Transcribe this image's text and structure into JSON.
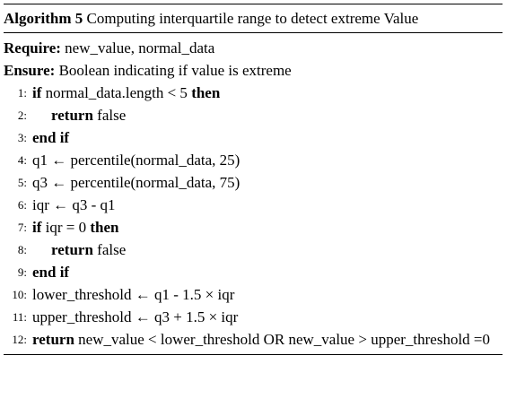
{
  "title": {
    "label": "Algorithm 5",
    "text": "Computing interquartile range to detect extreme Value"
  },
  "require": {
    "keyword": "Require:",
    "text": "new_value, normal_data"
  },
  "ensure": {
    "keyword": "Ensure:",
    "text": "Boolean indicating if value is extreme"
  },
  "lines": [
    {
      "num": "1:",
      "kw1": "if",
      "text": "normal_data.length < 5",
      "kw2": "then"
    },
    {
      "num": "2:",
      "kw1": "return",
      "text": "false"
    },
    {
      "num": "3:",
      "kw1": "end if"
    },
    {
      "num": "4:",
      "text": "q1 ← percentile(normal_data, 25)"
    },
    {
      "num": "5:",
      "text": "q3 ← percentile(normal_data, 75)"
    },
    {
      "num": "6:",
      "text": "iqr ← q3 - q1"
    },
    {
      "num": "7:",
      "kw1": "if",
      "text": "iqr = 0",
      "kw2": "then"
    },
    {
      "num": "8:",
      "kw1": "return",
      "text": "false"
    },
    {
      "num": "9:",
      "kw1": "end if"
    },
    {
      "num": "10:",
      "text": "lower_threshold ← q1 - 1.5 × iqr"
    },
    {
      "num": "11:",
      "text": "upper_threshold ← q3 + 1.5 × iqr"
    },
    {
      "num": "12:",
      "kw1": "return",
      "text": "new_value < lower_threshold OR new_value > upper_threshold =0"
    }
  ]
}
